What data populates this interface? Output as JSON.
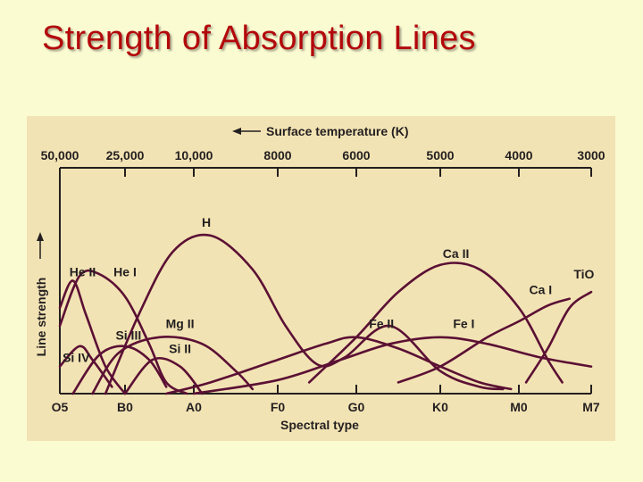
{
  "slide": {
    "title": "Strength of Absorption Lines"
  },
  "chart_data": {
    "type": "line",
    "top_axis_label": "Surface temperature (K)",
    "top_ticks": [
      "50,000",
      "25,000",
      "10,000",
      "8000",
      "6000",
      "5000",
      "4000",
      "3000"
    ],
    "xlabel": "Spectral type",
    "ylabel": "Line strength",
    "categories": [
      "O5",
      "B0",
      "A0",
      "F0",
      "G0",
      "K0",
      "M0",
      "M7"
    ],
    "series": [
      {
        "name": "He II",
        "points": [
          [
            0.0,
            0.38
          ],
          [
            0.2,
            0.5
          ],
          [
            0.4,
            0.35
          ],
          [
            0.7,
            0.12
          ],
          [
            1.0,
            0.0
          ]
        ]
      },
      {
        "name": "He I",
        "points": [
          [
            0.0,
            0.3
          ],
          [
            0.3,
            0.52
          ],
          [
            0.6,
            0.53
          ],
          [
            1.0,
            0.43
          ],
          [
            1.35,
            0.22
          ],
          [
            1.6,
            0.05
          ],
          [
            1.9,
            0.0
          ]
        ]
      },
      {
        "name": "H",
        "points": [
          [
            0.7,
            0.0
          ],
          [
            1.2,
            0.35
          ],
          [
            1.7,
            0.63
          ],
          [
            2.2,
            0.7
          ],
          [
            2.7,
            0.55
          ],
          [
            3.1,
            0.3
          ],
          [
            3.5,
            0.13
          ],
          [
            3.85,
            0.16
          ],
          [
            4.4,
            0.3
          ],
          [
            5.0,
            0.1
          ],
          [
            5.5,
            0.03
          ],
          [
            5.8,
            0.02
          ]
        ]
      },
      {
        "name": "Ca II",
        "points": [
          [
            3.4,
            0.05
          ],
          [
            4.0,
            0.25
          ],
          [
            4.5,
            0.45
          ],
          [
            5.0,
            0.57
          ],
          [
            5.5,
            0.55
          ],
          [
            6.0,
            0.38
          ],
          [
            6.4,
            0.15
          ],
          [
            6.6,
            0.05
          ]
        ]
      },
      {
        "name": "Fe II",
        "points": [
          [
            1.6,
            0.0
          ],
          [
            2.2,
            0.05
          ],
          [
            3.0,
            0.15
          ],
          [
            3.6,
            0.22
          ],
          [
            4.0,
            0.25
          ],
          [
            4.5,
            0.2
          ],
          [
            5.0,
            0.12
          ],
          [
            5.5,
            0.05
          ],
          [
            5.9,
            0.02
          ]
        ]
      },
      {
        "name": "Fe I",
        "points": [
          [
            2.0,
            0.0
          ],
          [
            3.0,
            0.06
          ],
          [
            3.8,
            0.15
          ],
          [
            4.4,
            0.22
          ],
          [
            5.0,
            0.25
          ],
          [
            5.6,
            0.22
          ],
          [
            6.3,
            0.16
          ],
          [
            7.0,
            0.12
          ]
        ]
      },
      {
        "name": "Ca I",
        "points": [
          [
            4.5,
            0.05
          ],
          [
            5.0,
            0.12
          ],
          [
            5.6,
            0.25
          ],
          [
            6.0,
            0.32
          ],
          [
            6.4,
            0.39
          ],
          [
            6.7,
            0.42
          ]
        ]
      },
      {
        "name": "TiO",
        "points": [
          [
            6.1,
            0.05
          ],
          [
            6.4,
            0.2
          ],
          [
            6.7,
            0.38
          ],
          [
            7.0,
            0.45
          ]
        ]
      },
      {
        "name": "Mg II",
        "points": [
          [
            0.5,
            0.0
          ],
          [
            0.9,
            0.18
          ],
          [
            1.5,
            0.25
          ],
          [
            2.1,
            0.22
          ],
          [
            2.5,
            0.1
          ],
          [
            2.7,
            0.02
          ]
        ]
      },
      {
        "name": "Si III",
        "points": [
          [
            0.2,
            0.0
          ],
          [
            0.6,
            0.17
          ],
          [
            1.0,
            0.21
          ],
          [
            1.35,
            0.15
          ],
          [
            1.6,
            0.03
          ]
        ]
      },
      {
        "name": "Si IV",
        "points": [
          [
            0.0,
            0.12
          ],
          [
            0.3,
            0.21
          ],
          [
            0.5,
            0.15
          ],
          [
            0.8,
            0.03
          ]
        ]
      },
      {
        "name": "Si II",
        "points": [
          [
            1.0,
            0.0
          ],
          [
            1.4,
            0.15
          ],
          [
            1.8,
            0.12
          ],
          [
            2.1,
            0.0
          ]
        ]
      }
    ],
    "labels": [
      {
        "text": "He II",
        "x": 0.35,
        "y": 0.52
      },
      {
        "text": "He I",
        "x": 1.0,
        "y": 0.52
      },
      {
        "text": "H",
        "x": 2.15,
        "y": 0.74
      },
      {
        "text": "Ca II",
        "x": 5.2,
        "y": 0.6
      },
      {
        "text": "TiO",
        "x": 6.9,
        "y": 0.51
      },
      {
        "text": "Ca I",
        "x": 6.3,
        "y": 0.44
      },
      {
        "text": "Fe II",
        "x": 4.3,
        "y": 0.29
      },
      {
        "text": "Fe I",
        "x": 5.3,
        "y": 0.29
      },
      {
        "text": "Mg II",
        "x": 1.8,
        "y": 0.29
      },
      {
        "text": "Si III",
        "x": 1.05,
        "y": 0.24
      },
      {
        "text": "Si II",
        "x": 1.8,
        "y": 0.18
      },
      {
        "text": "Si IV",
        "x": 0.25,
        "y": 0.14
      }
    ],
    "ylim": [
      0,
      1
    ],
    "grid": false,
    "line_color": "#5b1034"
  }
}
